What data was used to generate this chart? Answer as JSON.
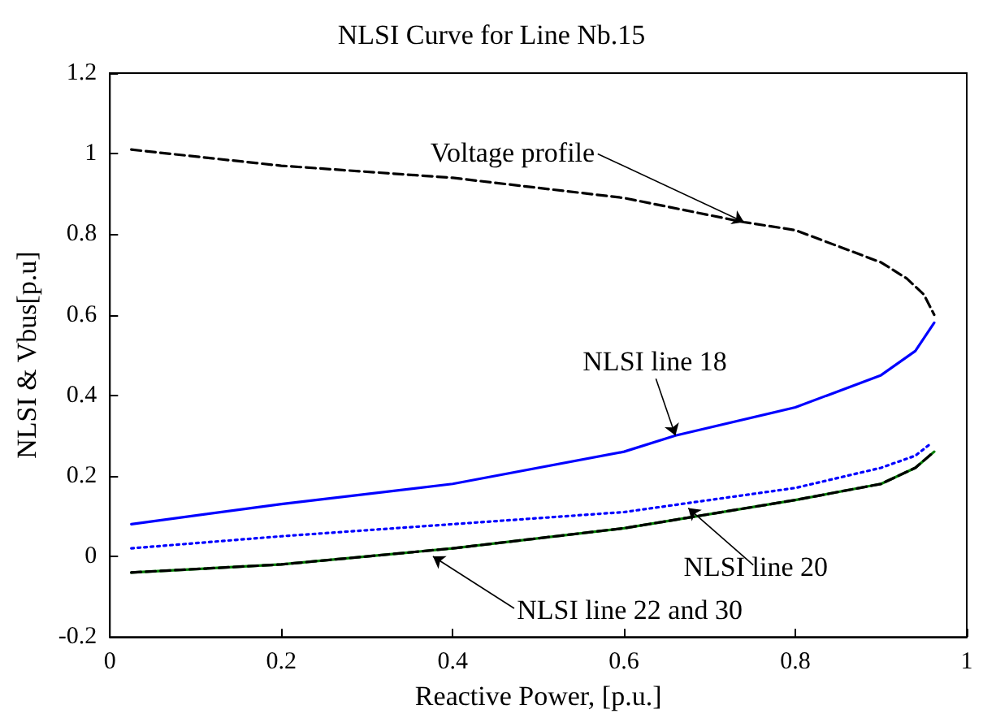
{
  "chart_data": {
    "type": "line",
    "title": "NLSI Curve for Line Nb.15",
    "xlabel": "Reactive Power, [p.u.]",
    "ylabel": "NLSI & Vbus[p.u]",
    "xlim": [
      0,
      1
    ],
    "xticks": [
      0,
      0.2,
      0.4,
      0.6,
      0.8,
      1
    ],
    "ylim": [
      -0.2,
      1.2
    ],
    "yticks": [
      -0.2,
      0,
      0.2,
      0.4,
      0.6,
      0.8,
      1,
      1.2
    ],
    "grid": false,
    "marker": "none",
    "series": [
      {
        "color": "#000000",
        "line_style": "dashed",
        "x": [
          0.025,
          0.2,
          0.4,
          0.6,
          0.74,
          0.8,
          0.85,
          0.9,
          0.93,
          0.95,
          0.962
        ],
        "values": [
          1.01,
          0.97,
          0.94,
          0.89,
          0.83,
          0.81,
          0.77,
          0.73,
          0.69,
          0.65,
          0.6
        ]
      },
      {
        "color": "#0000ff",
        "line_style": "solid",
        "x": [
          0.025,
          0.2,
          0.4,
          0.6,
          0.66,
          0.8,
          0.9,
          0.94,
          0.962
        ],
        "values": [
          0.08,
          0.13,
          0.18,
          0.26,
          0.3,
          0.37,
          0.45,
          0.51,
          0.58
        ]
      },
      {
        "color": "#0000ff",
        "line_style": "dotted",
        "x": [
          0.025,
          0.2,
          0.4,
          0.6,
          0.8,
          0.9,
          0.94,
          0.958
        ],
        "values": [
          0.02,
          0.05,
          0.08,
          0.11,
          0.17,
          0.22,
          0.25,
          0.28
        ]
      },
      {
        "color": "#008000",
        "line_style": "solid",
        "x": [
          0.025,
          0.2,
          0.4,
          0.6,
          0.8,
          0.9,
          0.94,
          0.962
        ],
        "values": [
          -0.04,
          -0.02,
          0.02,
          0.07,
          0.14,
          0.18,
          0.22,
          0.26
        ]
      },
      {
        "color": "#000000",
        "line_style": "dashed",
        "x": [
          0.025,
          0.2,
          0.4,
          0.6,
          0.8,
          0.9,
          0.94,
          0.962
        ],
        "values": [
          -0.04,
          -0.02,
          0.02,
          0.07,
          0.14,
          0.18,
          0.22,
          0.26
        ]
      }
    ],
    "annotations": [
      {
        "text": "Voltage profile",
        "x": 0.74,
        "y": 0.83
      },
      {
        "text": "NLSI line 18",
        "x": 0.66,
        "y": 0.3
      },
      {
        "text": "NLSI line 20",
        "x": 0.675,
        "y": 0.12
      },
      {
        "text": "NLSI line 22 and 30",
        "x": 0.377,
        "y": 0
      }
    ]
  }
}
